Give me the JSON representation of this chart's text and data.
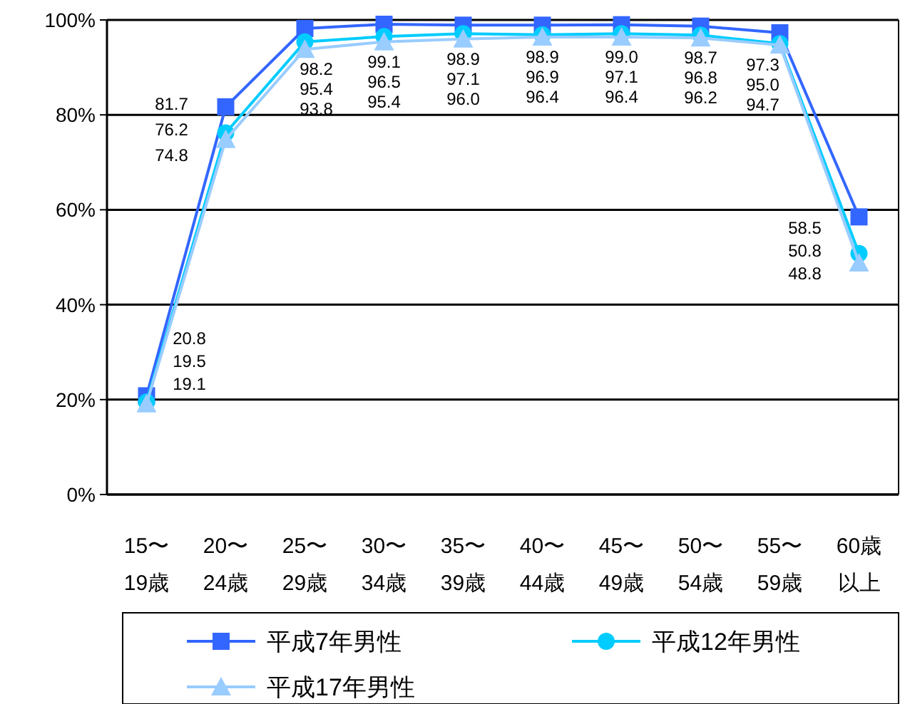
{
  "chart_data": {
    "type": "line",
    "categories": [
      "15〜19歳",
      "20〜24歳",
      "25〜29歳",
      "30〜34歳",
      "35〜39歳",
      "40〜44歳",
      "45〜49歳",
      "50〜54歳",
      "55〜59歳",
      "60歳以上"
    ],
    "series": [
      {
        "name": "平成7年男性",
        "color": "#3366ff",
        "marker": "square",
        "values": [
          20.8,
          81.7,
          98.2,
          99.1,
          98.9,
          98.9,
          99.0,
          98.7,
          97.3,
          58.5
        ],
        "value_labels": [
          "20.8",
          "81.7",
          "98.2",
          "99.1",
          "98.9",
          "98.9",
          "99.0",
          "98.7",
          "97.3",
          "58.5"
        ]
      },
      {
        "name": "平成12年男性",
        "color": "#00ccff",
        "marker": "circle",
        "values": [
          19.5,
          76.2,
          95.4,
          96.5,
          97.1,
          96.9,
          97.1,
          96.8,
          95.0,
          50.8
        ],
        "value_labels": [
          "19.5",
          "76.2",
          "95.4",
          "96.5",
          "97.1",
          "96.9",
          "97.1",
          "96.8",
          "95.0",
          "50.8"
        ]
      },
      {
        "name": "平成17年男性",
        "color": "#99ccff",
        "marker": "triangle",
        "values": [
          19.1,
          74.8,
          93.8,
          95.4,
          96.0,
          96.4,
          96.4,
          96.2,
          94.7,
          48.8
        ],
        "value_labels": [
          "19.1",
          "74.8",
          "93.8",
          "95.4",
          "96.0",
          "96.4",
          "96.4",
          "96.2",
          "94.7",
          "48.8"
        ]
      }
    ],
    "ylim": [
      0,
      100
    ],
    "yticks": [
      {
        "value": 0,
        "label": "0%"
      },
      {
        "value": 20,
        "label": "20%"
      },
      {
        "value": 40,
        "label": "40%"
      },
      {
        "value": 60,
        "label": "60%"
      },
      {
        "value": 80,
        "label": "80%"
      },
      {
        "value": 100,
        "label": "100%"
      }
    ],
    "grid": "y",
    "legend": "bottom"
  }
}
